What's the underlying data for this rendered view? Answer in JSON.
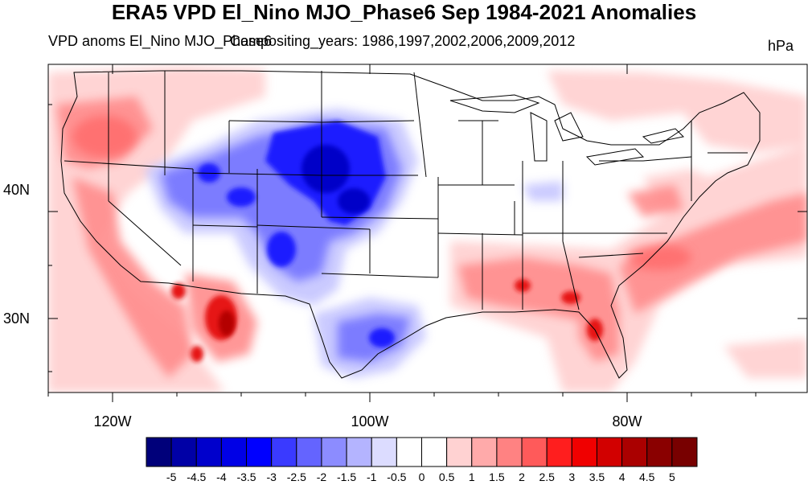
{
  "title": "ERA5 VPD El_Nino MJO_Phase6 Sep 1984-2021 Anomalies",
  "subtitle_left": "VPD anoms El_Nino MJO_Phase6",
  "subtitle_overlap": "Compositing_years: 1986,1997,2002,2006,2009,2012",
  "units": "hPa",
  "lat_labels": [
    "40N",
    "30N"
  ],
  "lon_labels": [
    "120W",
    "100W",
    "80W"
  ],
  "colorbar": {
    "labels": [
      "-5",
      "-4.5",
      "-4",
      "-3.5",
      "-3",
      "-2.5",
      "-2",
      "-1.5",
      "-1",
      "-0.5",
      "0",
      "0.5",
      "1",
      "1.5",
      "2",
      "2.5",
      "3",
      "3.5",
      "4",
      "4.5",
      "5"
    ],
    "colors": [
      "#00007a",
      "#0000a6",
      "#0000cc",
      "#0000e6",
      "#0000ff",
      "#3a3aff",
      "#6464ff",
      "#8c8cff",
      "#b4b4ff",
      "#dcdcff",
      "#ffffff",
      "#ffffff",
      "#ffd2d2",
      "#ffaaaa",
      "#ff8282",
      "#ff5a5a",
      "#ff1e1e",
      "#f00000",
      "#d20000",
      "#aa0000",
      "#8a0000",
      "#780000"
    ]
  },
  "colors": {
    "blue_strong": "#0000e6",
    "blue_mid": "#6464ff",
    "blue_light": "#b4b4ff",
    "red_strong": "#e00000",
    "red_mid": "#ff6464",
    "red_light": "#ffc8c8"
  }
}
